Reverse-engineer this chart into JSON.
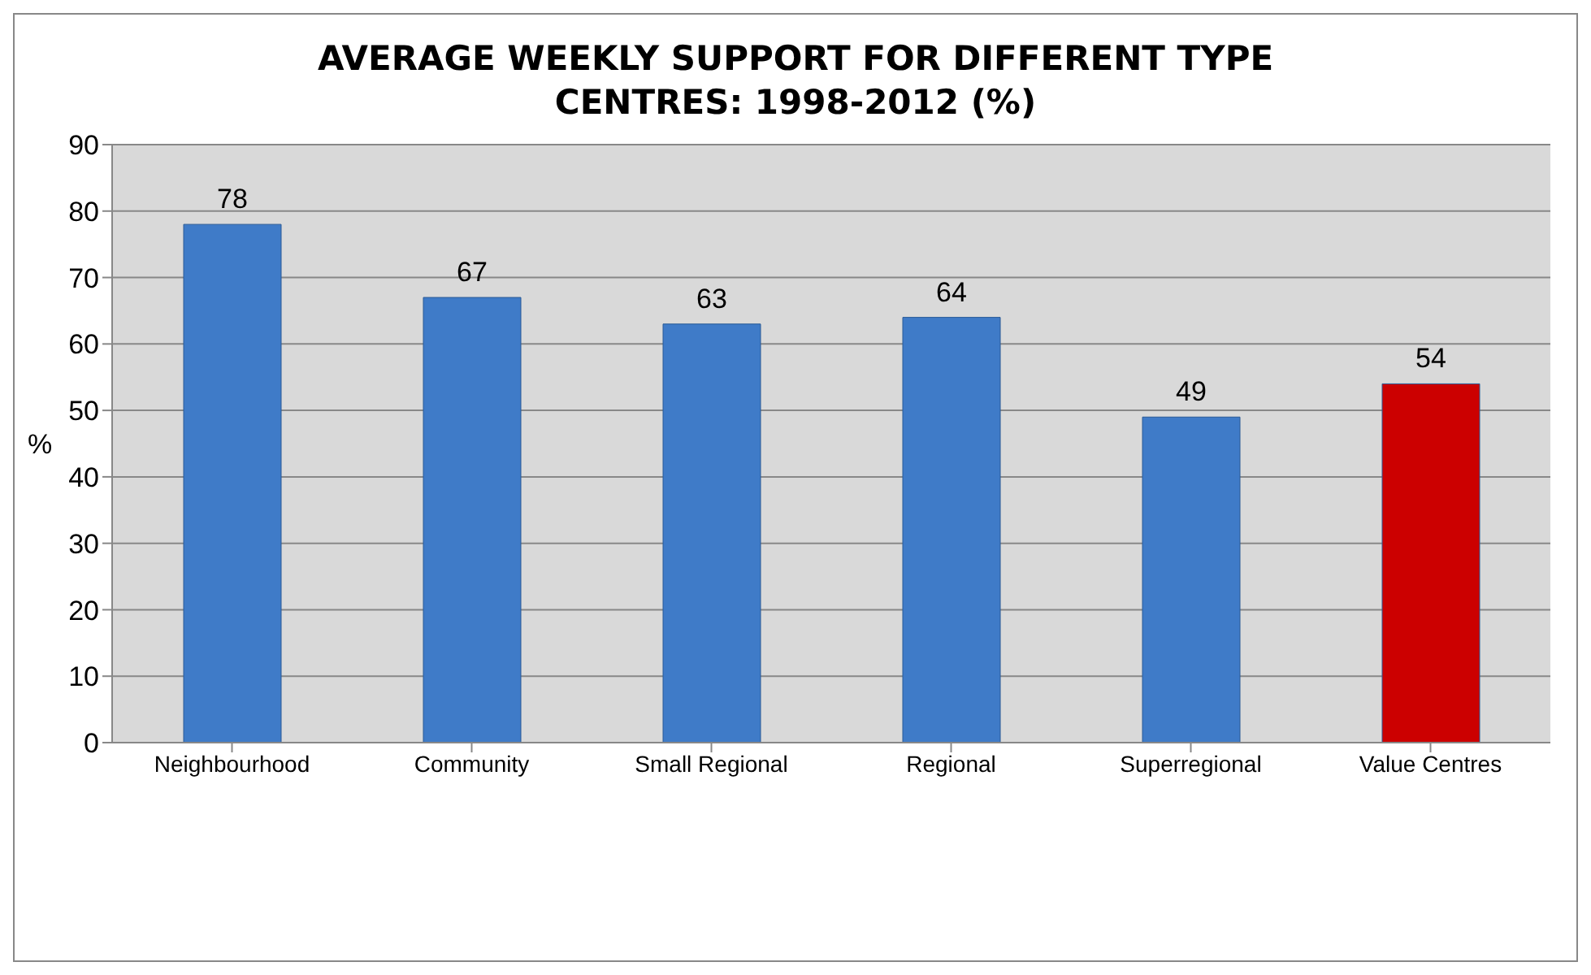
{
  "chart_data": {
    "type": "bar",
    "title": "AVERAGE WEEKLY SUPPORT FOR DIFFERENT TYPE CENTRES: 1998-2012 (%)",
    "ylabel": "%",
    "categories": [
      "Neighbourhood",
      "Community",
      "Small Regional",
      "Regional",
      "Superregional",
      "Value Centres"
    ],
    "values": [
      78,
      67,
      63,
      64,
      49,
      54
    ],
    "colors": [
      "#3f7bc8",
      "#3f7bc8",
      "#3f7bc8",
      "#3f7bc8",
      "#3f7bc8",
      "#cc0000"
    ],
    "ylim": [
      0,
      90
    ],
    "yticks": [
      0,
      10,
      20,
      30,
      40,
      50,
      60,
      70,
      80,
      90
    ],
    "grid": "y",
    "data_labels": true
  }
}
